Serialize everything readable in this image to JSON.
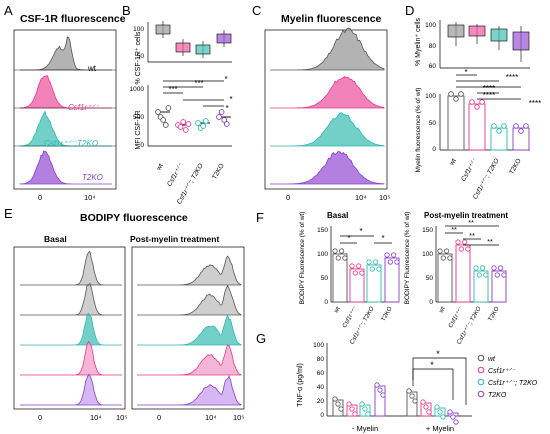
{
  "panels": {
    "A": {
      "letter": "A",
      "title": "CSF-1R fluorescence",
      "rows": [
        "wt",
        "Csf1r⁺ᐟ⁻",
        "Csf1r⁺ᐟ⁻;T2KO",
        "T2KO"
      ],
      "ticks": [
        "0",
        "10⁴"
      ]
    },
    "B": {
      "letter": "B",
      "ylabel_top": "% CSF-1R⁺ cells",
      "ylabel_bottom": "MFI CSF-1R",
      "yticks_top": [
        "100",
        "50"
      ],
      "yticks_bottom": [
        "1000",
        "500",
        "0"
      ],
      "xlabels": [
        "wt",
        "Csf1r⁺ᐟ⁻",
        "Csf1r⁺ᐟ⁻; T2KO",
        "T2KO"
      ],
      "sig": [
        "***",
        "***",
        "*",
        "*",
        "*"
      ]
    },
    "C": {
      "letter": "C",
      "title": "Myelin fluorescence",
      "ticks": [
        "0",
        "10⁴",
        "10⁵"
      ]
    },
    "D": {
      "letter": "D",
      "ylabel_top": "% Myelin⁺ cells",
      "ylabel_bottom": "Myelin fluorescence (% of wt)",
      "yticks_top": [
        "100",
        "80",
        "60"
      ],
      "yticks_bottom": [
        "100",
        "50",
        "0"
      ],
      "xlabels": [
        "wt",
        "Csf1r⁺ᐟ⁻",
        "Csf1r⁺ᐟ⁻; T2KO",
        "T2KO"
      ],
      "sig": [
        "*",
        "****",
        "****",
        "****",
        "****"
      ]
    },
    "E": {
      "letter": "E",
      "title": "BODIPY fluorescence",
      "sub_left": "Basal",
      "sub_right": "Post-myelin treatment",
      "ticks": [
        "0",
        "10⁴",
        "10⁵"
      ]
    },
    "F": {
      "letter": "F",
      "sub_left": "Basal",
      "sub_right": "Post-myelin treatment",
      "ylabel": "BODIPY Fluorescence (% of wt)",
      "yticks": [
        "150",
        "100",
        "50",
        "0"
      ],
      "xlabels": [
        "wt",
        "Csf1r⁺ᐟ⁻",
        "Csf1r⁺ᐟ⁻; T2KO",
        "T2KO"
      ],
      "sig_left": [
        "*",
        "*",
        "*"
      ],
      "sig_right": [
        "**",
        "**",
        "**",
        "**"
      ]
    },
    "G": {
      "letter": "G",
      "ylabel": "TNF-α (pg/ml)",
      "yticks": [
        "100",
        "80",
        "60",
        "40",
        "20",
        "0"
      ],
      "groups": [
        "- Myelin",
        "+ Myelin"
      ],
      "sig": [
        "*",
        "*"
      ],
      "legend": [
        "wt",
        "Csf1r⁺ᐟ⁻",
        "Csf1r⁺ᐟ⁻; T2KO",
        "T2KO"
      ]
    }
  },
  "colors": {
    "wt": "#555555",
    "het": "#e8378f",
    "het_t2ko": "#2fb9b0",
    "t2ko": "#8a3fc8",
    "sig": "#000000"
  }
}
